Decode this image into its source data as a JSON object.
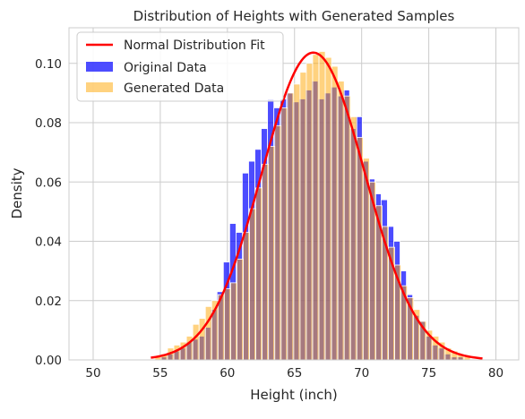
{
  "chart_data": {
    "type": "bar",
    "title": "Distribution of Heights with Generated Samples",
    "xlabel": "Height (inch)",
    "ylabel": "Density",
    "xlim": [
      48.2,
      81.7
    ],
    "ylim": [
      0,
      0.112
    ],
    "xticks": [
      "50",
      "55",
      "60",
      "65",
      "70",
      "75",
      "80"
    ],
    "xtick_values": [
      50,
      55,
      60,
      65,
      70,
      75,
      80
    ],
    "yticks": [
      "0.00",
      "0.02",
      "0.04",
      "0.06",
      "0.08",
      "0.10"
    ],
    "ytick_values": [
      0,
      0.02,
      0.04,
      0.06,
      0.08,
      0.1
    ],
    "grid": true,
    "legend_position": "top-left",
    "legend": [
      "Normal Distribution Fit",
      "Original Data",
      "Generated Data"
    ],
    "colors": {
      "original": "#0000ff",
      "generated": "#ffa500",
      "fit": "#ff0000",
      "grid": "#cccccc"
    },
    "series": [
      {
        "name": "Original Data",
        "bin_edges": [
          55.0,
          55.47,
          55.94,
          56.41,
          56.88,
          57.35,
          57.82,
          58.29,
          58.76,
          59.23,
          59.7,
          60.17,
          60.64,
          61.11,
          61.58,
          62.05,
          62.52,
          62.99,
          63.46,
          63.93,
          64.4,
          64.87,
          65.34,
          65.81,
          66.28,
          66.75,
          67.22,
          67.69,
          68.16,
          68.63,
          69.1,
          69.57,
          70.04,
          70.51,
          70.98,
          71.45,
          71.92,
          72.39,
          72.86,
          73.33,
          73.8,
          74.27,
          74.74,
          75.21,
          75.68,
          76.15,
          76.62,
          77.09,
          77.56
        ],
        "values": [
          0.001,
          0.002,
          0.003,
          0.004,
          0.006,
          0.007,
          0.008,
          0.011,
          0.017,
          0.023,
          0.033,
          0.046,
          0.043,
          0.063,
          0.067,
          0.071,
          0.078,
          0.088,
          0.085,
          0.088,
          0.09,
          0.087,
          0.088,
          0.091,
          0.094,
          0.088,
          0.09,
          0.092,
          0.089,
          0.091,
          0.078,
          0.082,
          0.067,
          0.061,
          0.056,
          0.054,
          0.045,
          0.04,
          0.03,
          0.022,
          0.015,
          0.013,
          0.008,
          0.005,
          0.004,
          0.002,
          0.001,
          0.001
        ]
      },
      {
        "name": "Generated Data",
        "bin_edges": [
          54.6,
          55.07,
          55.54,
          56.01,
          56.48,
          56.95,
          57.42,
          57.89,
          58.36,
          58.83,
          59.3,
          59.77,
          60.24,
          60.71,
          61.18,
          61.65,
          62.12,
          62.59,
          63.06,
          63.53,
          64.0,
          64.47,
          64.94,
          65.41,
          65.88,
          66.35,
          66.82,
          67.29,
          67.76,
          68.23,
          68.7,
          69.17,
          69.64,
          70.11,
          70.58,
          71.05,
          71.52,
          71.99,
          72.46,
          72.93,
          73.4,
          73.87,
          74.34,
          74.81,
          75.28,
          75.75,
          76.22,
          76.69,
          77.16,
          77.63,
          78.1
        ],
        "values": [
          0.001,
          0.002,
          0.004,
          0.005,
          0.006,
          0.008,
          0.012,
          0.014,
          0.018,
          0.02,
          0.022,
          0.024,
          0.026,
          0.034,
          0.043,
          0.051,
          0.058,
          0.066,
          0.072,
          0.079,
          0.085,
          0.09,
          0.093,
          0.097,
          0.1,
          0.103,
          0.104,
          0.102,
          0.099,
          0.094,
          0.089,
          0.082,
          0.075,
          0.068,
          0.06,
          0.052,
          0.045,
          0.038,
          0.032,
          0.025,
          0.021,
          0.017,
          0.013,
          0.01,
          0.008,
          0.006,
          0.004,
          0.003,
          0.002,
          0.001
        ]
      },
      {
        "name": "Normal Distribution Fit",
        "curve": {
          "mean": 66.4,
          "std": 3.85,
          "x_range": [
            54.3,
            79.0
          ]
        }
      }
    ]
  }
}
